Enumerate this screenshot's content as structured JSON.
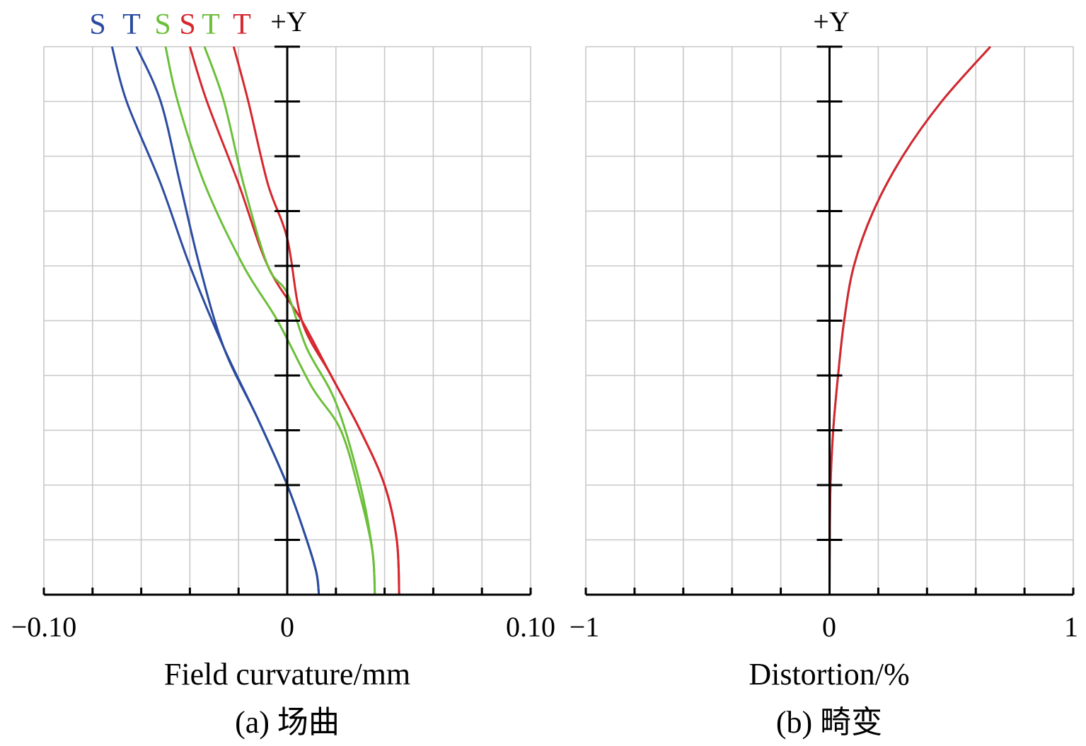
{
  "chart_data": [
    {
      "type": "line",
      "top_label": "+Y",
      "xlabel": "Field curvature/mm",
      "caption": "(a) 场曲",
      "x_tick_labels": [
        "−0.10",
        "0",
        "0.10"
      ],
      "xlim": [
        -0.1,
        0.1
      ],
      "ylim": [
        0,
        1
      ],
      "legend": [
        "S",
        "T",
        "S",
        "S",
        "T",
        "T"
      ],
      "legend_colors": [
        "#2b4ba0",
        "#2b4ba0",
        "#6cbf3a",
        "#d6262e",
        "#6cbf3a",
        "#d6262e"
      ],
      "series": [
        {
          "label": "S",
          "color": "#2b4ba0",
          "points": [
            [
              -0.072,
              1.0
            ],
            [
              -0.066,
              0.9
            ],
            [
              -0.052,
              0.75
            ],
            [
              -0.04,
              0.6
            ],
            [
              -0.026,
              0.45
            ],
            [
              -0.012,
              0.32
            ],
            [
              0.0,
              0.2
            ],
            [
              0.008,
              0.1
            ],
            [
              0.012,
              0.04
            ],
            [
              0.013,
              0.0
            ]
          ]
        },
        {
          "label": "T",
          "color": "#2b4ba0",
          "points": [
            [
              -0.062,
              1.0
            ],
            [
              -0.052,
              0.9
            ],
            [
              -0.044,
              0.75
            ],
            [
              -0.036,
              0.6
            ],
            [
              -0.026,
              0.45
            ],
            [
              -0.012,
              0.32
            ],
            [
              0.0,
              0.2
            ],
            [
              0.008,
              0.1
            ],
            [
              0.012,
              0.04
            ],
            [
              0.013,
              0.0
            ]
          ]
        },
        {
          "label": "S",
          "color": "#6cbf3a",
          "points": [
            [
              -0.05,
              1.0
            ],
            [
              -0.045,
              0.9
            ],
            [
              -0.034,
              0.75
            ],
            [
              -0.018,
              0.6
            ],
            [
              -0.004,
              0.5
            ],
            [
              0.01,
              0.38
            ],
            [
              0.022,
              0.3
            ],
            [
              0.03,
              0.18
            ],
            [
              0.035,
              0.08
            ],
            [
              0.036,
              0.0
            ]
          ]
        },
        {
          "label": "S",
          "color": "#d6262e",
          "points": [
            [
              -0.04,
              1.0
            ],
            [
              -0.033,
              0.9
            ],
            [
              -0.02,
              0.75
            ],
            [
              -0.008,
              0.6
            ],
            [
              0.006,
              0.5
            ],
            [
              0.018,
              0.4
            ],
            [
              0.03,
              0.3
            ],
            [
              0.04,
              0.2
            ],
            [
              0.045,
              0.1
            ],
            [
              0.046,
              0.0
            ]
          ]
        },
        {
          "label": "T",
          "color": "#6cbf3a",
          "points": [
            [
              -0.034,
              1.0
            ],
            [
              -0.026,
              0.9
            ],
            [
              -0.018,
              0.75
            ],
            [
              -0.008,
              0.6
            ],
            [
              0.0,
              0.55
            ],
            [
              0.008,
              0.45
            ],
            [
              0.02,
              0.35
            ],
            [
              0.03,
              0.2
            ],
            [
              0.035,
              0.08
            ],
            [
              0.036,
              0.0
            ]
          ]
        },
        {
          "label": "T",
          "color": "#d6262e",
          "points": [
            [
              -0.022,
              1.0
            ],
            [
              -0.016,
              0.9
            ],
            [
              -0.008,
              0.75
            ],
            [
              0.0,
              0.65
            ],
            [
              0.006,
              0.5
            ],
            [
              0.018,
              0.4
            ],
            [
              0.03,
              0.3
            ],
            [
              0.04,
              0.2
            ],
            [
              0.045,
              0.1
            ],
            [
              0.046,
              0.0
            ]
          ]
        }
      ]
    },
    {
      "type": "line",
      "top_label": "+Y",
      "xlabel": "Distortion/%",
      "caption": "(b) 畸变",
      "x_tick_labels": [
        "−1",
        "0",
        "1"
      ],
      "xlim": [
        -1,
        1
      ],
      "ylim": [
        0,
        1
      ],
      "series": [
        {
          "color": "#3a9a8f",
          "points": [
            [
              0.0,
              0.0
            ],
            [
              0.001,
              0.1
            ],
            [
              0.004,
              0.2
            ],
            [
              0.015,
              0.3
            ],
            [
              0.035,
              0.4
            ],
            [
              0.06,
              0.5
            ],
            [
              0.1,
              0.6
            ],
            [
              0.18,
              0.7
            ],
            [
              0.3,
              0.8
            ],
            [
              0.46,
              0.9
            ],
            [
              0.66,
              1.0
            ]
          ]
        },
        {
          "color": "#d6262e",
          "points": [
            [
              0.0,
              0.0
            ],
            [
              0.001,
              0.1
            ],
            [
              0.004,
              0.2
            ],
            [
              0.015,
              0.3
            ],
            [
              0.035,
              0.4
            ],
            [
              0.06,
              0.5
            ],
            [
              0.1,
              0.6
            ],
            [
              0.18,
              0.7
            ],
            [
              0.3,
              0.8
            ],
            [
              0.46,
              0.9
            ],
            [
              0.66,
              1.0
            ]
          ]
        }
      ]
    }
  ]
}
